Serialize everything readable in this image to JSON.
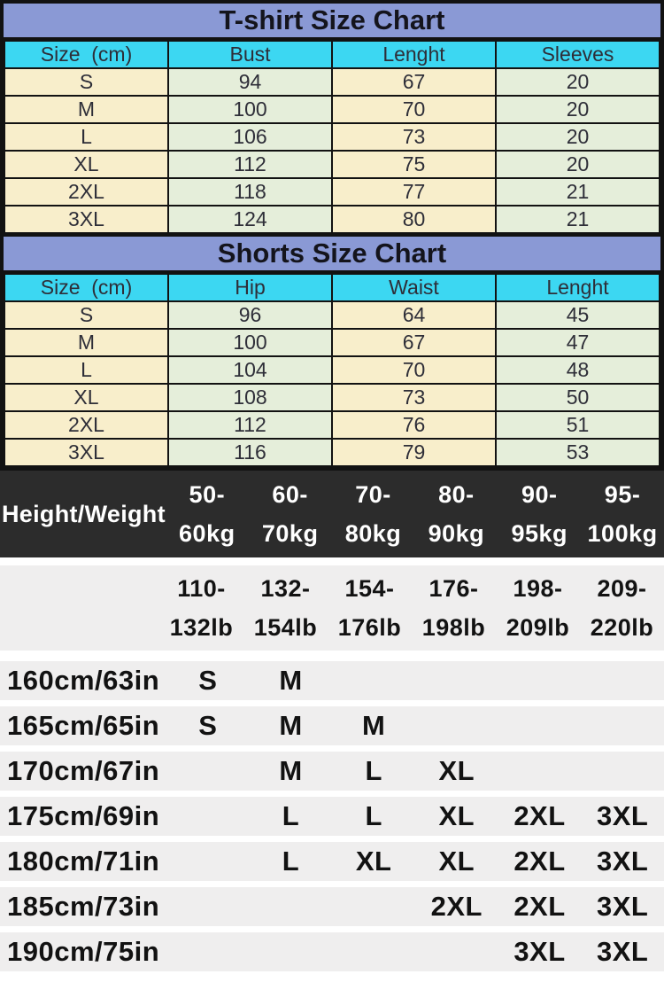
{
  "chart_data": [
    {
      "type": "table",
      "title": "T-shirt Size Chart",
      "columns": [
        "Size  (cm)",
        "Bust",
        "Lenght",
        "Sleeves"
      ],
      "rows": [
        [
          "S",
          "94",
          "67",
          "20"
        ],
        [
          "M",
          "100",
          "70",
          "20"
        ],
        [
          "L",
          "106",
          "73",
          "20"
        ],
        [
          "XL",
          "112",
          "75",
          "20"
        ],
        [
          "2XL",
          "118",
          "77",
          "21"
        ],
        [
          "3XL",
          "124",
          "80",
          "21"
        ]
      ]
    },
    {
      "type": "table",
      "title": "Shorts Size Chart",
      "columns": [
        "Size  (cm)",
        "Hip",
        "Waist",
        "Lenght"
      ],
      "rows": [
        [
          "S",
          "96",
          "64",
          "45"
        ],
        [
          "M",
          "100",
          "67",
          "47"
        ],
        [
          "L",
          "104",
          "70",
          "48"
        ],
        [
          "XL",
          "108",
          "73",
          "50"
        ],
        [
          "2XL",
          "112",
          "76",
          "51"
        ],
        [
          "3XL",
          "116",
          "79",
          "53"
        ]
      ]
    },
    {
      "type": "table",
      "corner_label": "Height/Weight",
      "kg_ranges": [
        {
          "line1": "50-",
          "line2": "60kg"
        },
        {
          "line1": "60-",
          "line2": "70kg"
        },
        {
          "line1": "70-",
          "line2": "80kg"
        },
        {
          "line1": "80-",
          "line2": "90kg"
        },
        {
          "line1": "90-",
          "line2": "95kg"
        },
        {
          "line1": "95-",
          "line2": "100kg"
        }
      ],
      "lb_ranges": [
        {
          "line1": "110-",
          "line2": "132lb"
        },
        {
          "line1": "132-",
          "line2": "154lb"
        },
        {
          "line1": "154-",
          "line2": "176lb"
        },
        {
          "line1": "176-",
          "line2": "198lb"
        },
        {
          "line1": "198-",
          "line2": "209lb"
        },
        {
          "line1": "209-",
          "line2": "220lb"
        }
      ],
      "rows": [
        {
          "height": "160cm/63in",
          "sizes": [
            "S",
            "M",
            "",
            "",
            "",
            ""
          ]
        },
        {
          "height": "165cm/65in",
          "sizes": [
            "S",
            "M",
            "M",
            "",
            "",
            ""
          ]
        },
        {
          "height": "170cm/67in",
          "sizes": [
            "",
            "M",
            "L",
            "XL",
            "",
            ""
          ]
        },
        {
          "height": "175cm/69in",
          "sizes": [
            "",
            "L",
            "L",
            "XL",
            "2XL",
            "3XL"
          ]
        },
        {
          "height": "180cm/71in",
          "sizes": [
            "",
            "L",
            "XL",
            "XL",
            "2XL",
            "3XL"
          ]
        },
        {
          "height": "185cm/73in",
          "sizes": [
            "",
            "",
            "",
            "2XL",
            "2XL",
            "3XL"
          ]
        },
        {
          "height": "190cm/75in",
          "sizes": [
            "",
            "",
            "",
            "",
            "3XL",
            "3XL"
          ]
        }
      ]
    }
  ],
  "colors": {
    "title_band": "#8a99d5",
    "header_cyan": "#3cd7f2",
    "cell_yellow": "#f8eecb",
    "cell_green": "#e5eeda",
    "dark_bar": "#2c2c2c",
    "light_strip": "#efeeee",
    "border_black": "#121212"
  }
}
